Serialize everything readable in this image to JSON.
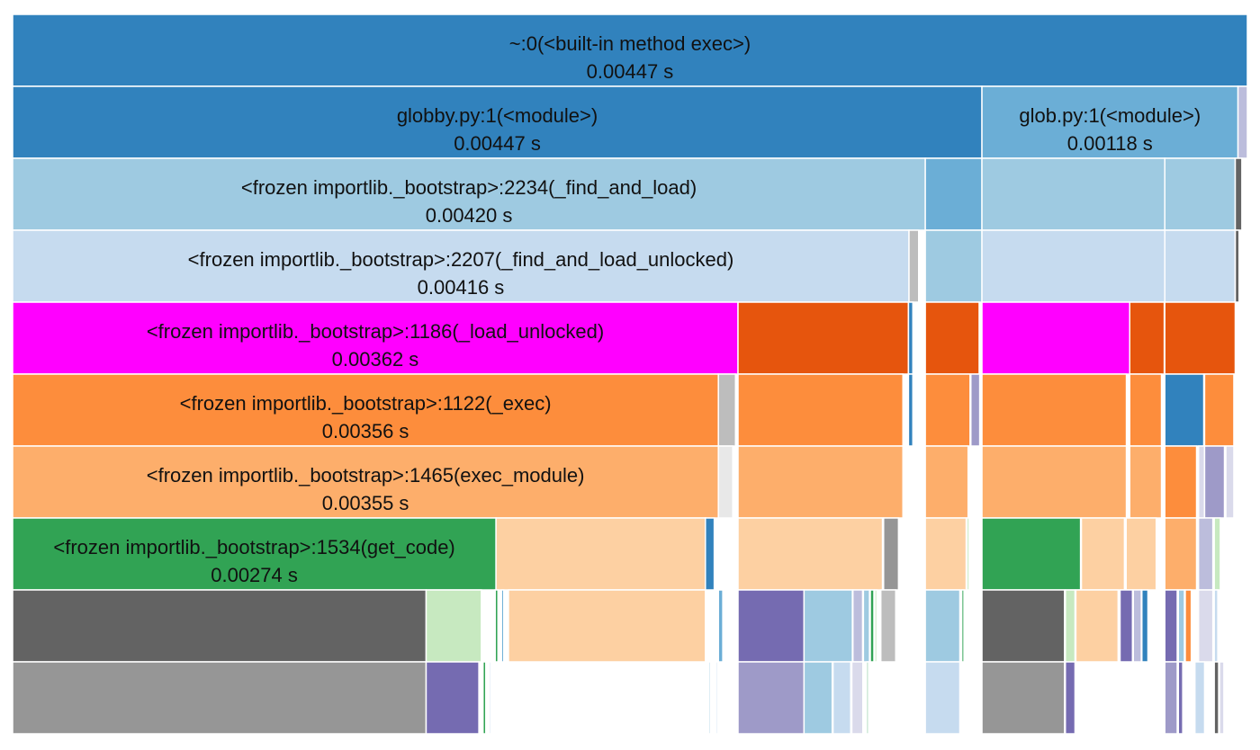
{
  "chart_data": {
    "type": "icicle",
    "unit": "s",
    "total": 0.00447,
    "colors": {
      "blue_dark": "#3182bd",
      "blue_mid": "#6baed6",
      "blue_light": "#9ecae1",
      "blue_pale": "#c6dbef",
      "magenta": "#ff00ff",
      "orange_dark": "#e6550d",
      "orange": "#fd8d3c",
      "orange_light": "#fdae6b",
      "peach": "#fdd0a2",
      "green": "#31a354",
      "green_light": "#c7e9c0",
      "gray_dark": "#636363",
      "gray": "#969696",
      "gray_light": "#bdbdbd",
      "purple_dark": "#756bb1",
      "purple": "#9e9ac8",
      "purple_light": "#bcbddc",
      "purple_pale": "#dadaeb"
    },
    "nodes": [
      {
        "id": "root",
        "depth": 0,
        "start": 0.0,
        "value": 0.00447,
        "color": "#3182bd",
        "name": "~:0(<built-in method exec>)",
        "time_label": "0.00447 s"
      },
      {
        "id": "globby",
        "depth": 1,
        "start": 0.0,
        "value": 0.003509,
        "color": "#3182bd",
        "name": "globby.py:1(<module>)",
        "time_label": "0.00447 s"
      },
      {
        "id": "glob",
        "depth": 1,
        "start": 0.003509,
        "value": 0.000927,
        "color": "#6baed6",
        "name": "glob.py:1(<module>)",
        "time_label": "0.00118 s"
      },
      {
        "id": "d1_tiny",
        "depth": 1,
        "start": 0.004436,
        "value": 3.4e-05,
        "color": "#bcbddc"
      },
      {
        "id": "fal",
        "depth": 2,
        "start": 0.0,
        "value": 0.003304,
        "color": "#9ecae1",
        "name": "<frozen importlib._bootstrap>:2234(_find_and_load)",
        "time_label": "0.00420 s"
      },
      {
        "id": "d2_b",
        "depth": 2,
        "start": 0.003304,
        "value": 0.000205,
        "color": "#6baed6"
      },
      {
        "id": "d2_c",
        "depth": 2,
        "start": 0.003509,
        "value": 0.000662,
        "color": "#9ecae1"
      },
      {
        "id": "d2_d",
        "depth": 2,
        "start": 0.004171,
        "value": 0.000255,
        "color": "#9ecae1"
      },
      {
        "id": "d2_e",
        "depth": 2,
        "start": 0.004426,
        "value": 2.4e-05,
        "color": "#636363"
      },
      {
        "id": "falu",
        "depth": 3,
        "start": 0.0,
        "value": 0.003245,
        "color": "#c6dbef",
        "name": "<frozen importlib._bootstrap>:2207(_find_and_load_unlocked)",
        "time_label": "0.00416 s"
      },
      {
        "id": "d3_a2",
        "depth": 3,
        "start": 0.003245,
        "value": 3.5e-05,
        "color": "#bdbdbd"
      },
      {
        "id": "d3_b",
        "depth": 3,
        "start": 0.003304,
        "value": 0.000205,
        "color": "#9ecae1"
      },
      {
        "id": "d3_c",
        "depth": 3,
        "start": 0.003509,
        "value": 0.000662,
        "color": "#c6dbef"
      },
      {
        "id": "d3_d",
        "depth": 3,
        "start": 0.004171,
        "value": 0.000255,
        "color": "#c6dbef"
      },
      {
        "id": "d3_e",
        "depth": 3,
        "start": 0.004426,
        "value": 1.4e-05,
        "color": "#636363"
      },
      {
        "id": "lu",
        "depth": 4,
        "start": 0.0,
        "value": 0.002626,
        "color": "#ff00ff",
        "name": "<frozen importlib._bootstrap>:1186(_load_unlocked)",
        "time_label": "0.00362 s"
      },
      {
        "id": "d4_a",
        "depth": 4,
        "start": 0.002626,
        "value": 0.000617,
        "color": "#e6550d"
      },
      {
        "id": "d4_a2",
        "depth": 4,
        "start": 0.003243,
        "value": 1.6e-05,
        "color": "#3182bd"
      },
      {
        "id": "d4_b",
        "depth": 4,
        "start": 0.003304,
        "value": 0.000195,
        "color": "#e6550d"
      },
      {
        "id": "d4_c",
        "depth": 4,
        "start": 0.003509,
        "value": 0.000535,
        "color": "#ff00ff"
      },
      {
        "id": "d4_c2",
        "depth": 4,
        "start": 0.004044,
        "value": 0.000125,
        "color": "#e6550d"
      },
      {
        "id": "d4_d",
        "depth": 4,
        "start": 0.004171,
        "value": 0.000255,
        "color": "#e6550d"
      },
      {
        "id": "exec",
        "depth": 5,
        "start": 0.0,
        "value": 0.002555,
        "color": "#fd8d3c",
        "name": "<frozen importlib._bootstrap>:1122(_exec)",
        "time_label": "0.00356 s"
      },
      {
        "id": "d5_a1",
        "depth": 5,
        "start": 0.002555,
        "value": 6.2e-05,
        "color": "#bdbdbd"
      },
      {
        "id": "d5_a",
        "depth": 5,
        "start": 0.002626,
        "value": 0.000597,
        "color": "#fd8d3c"
      },
      {
        "id": "d5_a2",
        "depth": 5,
        "start": 0.003243,
        "value": 1.6e-05,
        "color": "#3182bd"
      },
      {
        "id": "d5_b",
        "depth": 5,
        "start": 0.003304,
        "value": 0.000162,
        "color": "#fd8d3c"
      },
      {
        "id": "d5_b2",
        "depth": 5,
        "start": 0.003469,
        "value": 3.2e-05,
        "color": "#9e9ac8"
      },
      {
        "id": "d5_c",
        "depth": 5,
        "start": 0.003509,
        "value": 0.000523,
        "color": "#fd8d3c"
      },
      {
        "id": "d5_c2",
        "depth": 5,
        "start": 0.004044,
        "value": 0.000115,
        "color": "#fd8d3c"
      },
      {
        "id": "d5_d1",
        "depth": 5,
        "start": 0.004171,
        "value": 0.000141,
        "color": "#3182bd"
      },
      {
        "id": "d5_d2",
        "depth": 5,
        "start": 0.004315,
        "value": 0.000106,
        "color": "#fd8d3c"
      },
      {
        "id": "em",
        "depth": 6,
        "start": 0.0,
        "value": 0.002555,
        "color": "#fdae6b",
        "name": "<frozen importlib._bootstrap>:1465(exec_module)",
        "time_label": "0.00355 s"
      },
      {
        "id": "d6_a1",
        "depth": 6,
        "start": 0.002555,
        "value": 5.2e-05,
        "color": "#e8e8e8"
      },
      {
        "id": "d6_a",
        "depth": 6,
        "start": 0.002626,
        "value": 0.000597,
        "color": "#fdae6b"
      },
      {
        "id": "d6_b",
        "depth": 6,
        "start": 0.003304,
        "value": 0.000155,
        "color": "#fdae6b"
      },
      {
        "id": "d6_c",
        "depth": 6,
        "start": 0.003509,
        "value": 0.000523,
        "color": "#fdae6b"
      },
      {
        "id": "d6_c2",
        "depth": 6,
        "start": 0.004044,
        "value": 0.000115,
        "color": "#fdae6b"
      },
      {
        "id": "d6_d1",
        "depth": 6,
        "start": 0.004171,
        "value": 0.000115,
        "color": "#fd8d3c"
      },
      {
        "id": "d6_d2",
        "depth": 6,
        "start": 0.004293,
        "value": 2.2e-05,
        "color": "#dadaeb"
      },
      {
        "id": "d6_d3",
        "depth": 6,
        "start": 0.004315,
        "value": 7.2e-05,
        "color": "#9e9ac8"
      },
      {
        "id": "d6_d4",
        "depth": 6,
        "start": 0.004392,
        "value": 2.9e-05,
        "color": "#dadaeb"
      },
      {
        "id": "gc",
        "depth": 7,
        "start": 0.0,
        "value": 0.00175,
        "color": "#31a354",
        "name": "<frozen importlib._bootstrap>:1534(get_code)",
        "time_label": "0.00274 s"
      },
      {
        "id": "d7_a",
        "depth": 7,
        "start": 0.00175,
        "value": 0.000758,
        "color": "#fdd0a2"
      },
      {
        "id": "d7_a2",
        "depth": 7,
        "start": 0.002508,
        "value": 3.2e-05,
        "color": "#3182bd"
      },
      {
        "id": "d7_b",
        "depth": 7,
        "start": 0.002626,
        "value": 0.000523,
        "color": "#fdd0a2"
      },
      {
        "id": "d7_b2",
        "depth": 7,
        "start": 0.003153,
        "value": 5.4e-05,
        "color": "#969696"
      },
      {
        "id": "d7_c",
        "depth": 7,
        "start": 0.003304,
        "value": 0.000148,
        "color": "#fdd0a2"
      },
      {
        "id": "d7_c2",
        "depth": 7,
        "start": 0.003455,
        "value": 8e-06,
        "color": "#c7e9c0"
      },
      {
        "id": "d7_d",
        "depth": 7,
        "start": 0.003509,
        "value": 0.000357,
        "color": "#31a354"
      },
      {
        "id": "d7_d2",
        "depth": 7,
        "start": 0.003869,
        "value": 0.000156,
        "color": "#fdd0a2"
      },
      {
        "id": "d7_d3",
        "depth": 7,
        "start": 0.004031,
        "value": 0.000109,
        "color": "#fdd0a2"
      },
      {
        "id": "d7_e1",
        "depth": 7,
        "start": 0.004171,
        "value": 0.000115,
        "color": "#fdae6b"
      },
      {
        "id": "d7_e2",
        "depth": 7,
        "start": 0.004293,
        "value": 5.2e-05,
        "color": "#bcbddc"
      },
      {
        "id": "d7_e3",
        "depth": 7,
        "start": 0.00435,
        "value": 2.2e-05,
        "color": "#c7e9c0"
      },
      {
        "id": "d8_a",
        "depth": 8,
        "start": 0.0,
        "value": 0.001497,
        "color": "#636363"
      },
      {
        "id": "d8_b",
        "depth": 8,
        "start": 0.001497,
        "value": 0.0002,
        "color": "#c7e9c0"
      },
      {
        "id": "d8_c",
        "depth": 8,
        "start": 0.001747,
        "value": 1e-05,
        "color": "#31a354"
      },
      {
        "id": "d8_c2",
        "depth": 8,
        "start": 0.00177,
        "value": 8e-06,
        "color": "#6baed6"
      },
      {
        "id": "d8_d",
        "depth": 8,
        "start": 0.001795,
        "value": 0.000713,
        "color": "#fdd0a2"
      },
      {
        "id": "d8_d2",
        "depth": 8,
        "start": 0.002555,
        "value": 1.6e-05,
        "color": "#6baed6"
      },
      {
        "id": "d8_e",
        "depth": 8,
        "start": 0.002626,
        "value": 0.000239,
        "color": "#756bb1"
      },
      {
        "id": "d8_f",
        "depth": 8,
        "start": 0.002865,
        "value": 0.000175,
        "color": "#9ecae1"
      },
      {
        "id": "d8_g",
        "depth": 8,
        "start": 0.003042,
        "value": 3.5e-05,
        "color": "#bcbddc"
      },
      {
        "id": "d8_h",
        "depth": 8,
        "start": 0.00308,
        "value": 2.2e-05,
        "color": "#9ecae1"
      },
      {
        "id": "d8_i",
        "depth": 8,
        "start": 0.003105,
        "value": 1.3e-05,
        "color": "#31a354"
      },
      {
        "id": "d8_j",
        "depth": 8,
        "start": 0.003121,
        "value": 8e-06,
        "color": "#c7e9c0"
      },
      {
        "id": "d8_k",
        "depth": 8,
        "start": 0.003143,
        "value": 5.4e-05,
        "color": "#bdbdbd"
      },
      {
        "id": "d8_l",
        "depth": 8,
        "start": 0.003304,
        "value": 0.000125,
        "color": "#9ecae1"
      },
      {
        "id": "d8_l2",
        "depth": 8,
        "start": 0.003436,
        "value": 8e-06,
        "color": "#31a354"
      },
      {
        "id": "d8_m",
        "depth": 8,
        "start": 0.003509,
        "value": 0.000299,
        "color": "#636363"
      },
      {
        "id": "d8_n",
        "depth": 8,
        "start": 0.003811,
        "value": 3.5e-05,
        "color": "#c7e9c0"
      },
      {
        "id": "d8_o",
        "depth": 8,
        "start": 0.003849,
        "value": 0.000153,
        "color": "#fdd0a2"
      },
      {
        "id": "d8_p",
        "depth": 8,
        "start": 0.004009,
        "value": 4.5e-05,
        "color": "#756bb1"
      },
      {
        "id": "d8_q",
        "depth": 8,
        "start": 0.004057,
        "value": 2.9e-05,
        "color": "#bcbddc"
      },
      {
        "id": "d8_r",
        "depth": 8,
        "start": 0.004088,
        "value": 2.2e-05,
        "color": "#3182bd"
      },
      {
        "id": "d8_s",
        "depth": 8,
        "start": 0.004171,
        "value": 4.5e-05,
        "color": "#756bb1"
      },
      {
        "id": "d8_t",
        "depth": 8,
        "start": 0.00422,
        "value": 2.2e-05,
        "color": "#9ecae1"
      },
      {
        "id": "d8_u",
        "depth": 8,
        "start": 0.004245,
        "value": 2.2e-05,
        "color": "#fd8d3c"
      },
      {
        "id": "d8_v",
        "depth": 8,
        "start": 0.004293,
        "value": 5.2e-05,
        "color": "#dadaeb"
      },
      {
        "id": "d8_w",
        "depth": 8,
        "start": 0.00435,
        "value": 1.3e-05,
        "color": "#c6dbef"
      },
      {
        "id": "d9_a",
        "depth": 9,
        "start": 0.0,
        "value": 0.001497,
        "color": "#969696"
      },
      {
        "id": "d9_b",
        "depth": 9,
        "start": 0.001497,
        "value": 0.000191,
        "color": "#756bb1"
      },
      {
        "id": "d9_c",
        "depth": 9,
        "start": 0.001703,
        "value": 1e-05,
        "color": "#31a354"
      },
      {
        "id": "d9_c2",
        "depth": 9,
        "start": 0.001725,
        "value": 6e-06,
        "color": "#c6dbef"
      },
      {
        "id": "d9_d",
        "depth": 9,
        "start": 0.00252,
        "value": 6e-06,
        "color": "#9ecae1"
      },
      {
        "id": "d9_d2",
        "depth": 9,
        "start": 0.002546,
        "value": 6e-06,
        "color": "#c6dbef"
      },
      {
        "id": "d9_e",
        "depth": 9,
        "start": 0.002626,
        "value": 0.000239,
        "color": "#9e9ac8"
      },
      {
        "id": "d9_f",
        "depth": 9,
        "start": 0.002865,
        "value": 0.000102,
        "color": "#9ecae1"
      },
      {
        "id": "d9_g",
        "depth": 9,
        "start": 0.00297,
        "value": 6.4e-05,
        "color": "#c6dbef"
      },
      {
        "id": "d9_h",
        "depth": 9,
        "start": 0.003038,
        "value": 4e-05,
        "color": "#dadaeb"
      },
      {
        "id": "d9_i",
        "depth": 9,
        "start": 0.003092,
        "value": 6e-06,
        "color": "#31a354"
      },
      {
        "id": "d9_j",
        "depth": 9,
        "start": 0.003304,
        "value": 0.000125,
        "color": "#c6dbef"
      },
      {
        "id": "d9_k",
        "depth": 9,
        "start": 0.003509,
        "value": 0.000299,
        "color": "#969696"
      },
      {
        "id": "d9_l",
        "depth": 9,
        "start": 0.003811,
        "value": 3.5e-05,
        "color": "#756bb1"
      },
      {
        "id": "d9_m",
        "depth": 9,
        "start": 0.004171,
        "value": 4.5e-05,
        "color": "#9e9ac8"
      },
      {
        "id": "d9_n",
        "depth": 9,
        "start": 0.00422,
        "value": 1.6e-05,
        "color": "#756bb1"
      },
      {
        "id": "d9_o",
        "depth": 9,
        "start": 0.00428,
        "value": 3.5e-05,
        "color": "#c6dbef"
      },
      {
        "id": "d9_p",
        "depth": 9,
        "start": 0.00435,
        "value": 1.6e-05,
        "color": "#636363"
      },
      {
        "id": "d9_q",
        "depth": 9,
        "start": 0.004369,
        "value": 1.6e-05,
        "color": "#dadaeb"
      }
    ]
  }
}
